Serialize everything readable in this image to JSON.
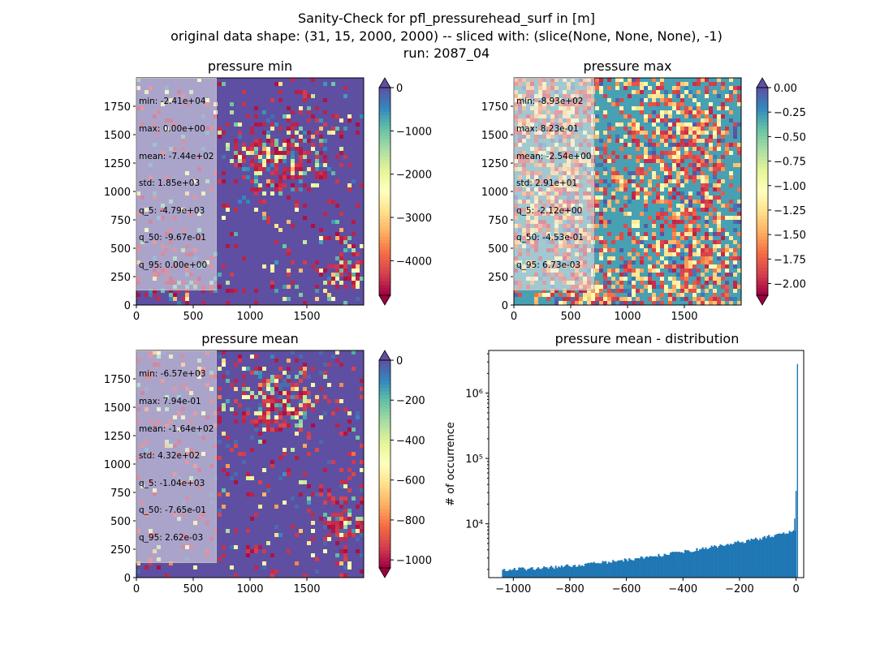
{
  "figure": {
    "title_lines": [
      "Sanity-Check for pfl_pressurehead_surf in [m]",
      "original data shape: (31, 15, 2000, 2000) -- sliced with: (slice(None, None, None), -1)",
      "run: 2087_04"
    ]
  },
  "colors": {
    "spectral": [
      "#9e0142",
      "#d53e4f",
      "#f46d43",
      "#fdae61",
      "#fee08b",
      "#ffffbf",
      "#e6f598",
      "#abdda4",
      "#66c2a5",
      "#3288bd",
      "#5e4fa2"
    ],
    "hist_bar": "#1f77b4"
  },
  "chart_data": [
    {
      "type": "heatmap",
      "title": "pressure min",
      "x_ticks": [
        0,
        500,
        1000,
        1500
      ],
      "y_ticks": [
        0,
        250,
        500,
        750,
        1000,
        1250,
        1500,
        1750
      ],
      "xlim": [
        0,
        2000
      ],
      "ylim": [
        0,
        2000
      ],
      "colormap": "Spectral",
      "dominant_value": 0,
      "color_range": [
        -4800,
        0
      ],
      "colorbar_ticks": [
        "0",
        "−1000",
        "−2000",
        "−3000",
        "−4000"
      ],
      "colorbar_tick_values": [
        0,
        -1000,
        -2000,
        -3000,
        -4000
      ],
      "colorbar_extend": "both",
      "stats": [
        "min: -2.41e+04",
        "max: 0.00e+00",
        "mean: -7.44e+02",
        "std: 1.85e+03",
        "q_5: -4.79e+03",
        "q_50: -9.67e-01",
        "q_95: 0.00e+00"
      ]
    },
    {
      "type": "heatmap",
      "title": "pressure max",
      "x_ticks": [
        0,
        500,
        1000,
        1500
      ],
      "y_ticks": [
        0,
        250,
        500,
        750,
        1000,
        1250,
        1500,
        1750
      ],
      "xlim": [
        0,
        2000
      ],
      "ylim": [
        0,
        2000
      ],
      "colormap": "Spectral",
      "dominant_value": -0.3,
      "color_range": [
        -2.12,
        0
      ],
      "colorbar_ticks": [
        "0.00",
        "−0.25",
        "−0.50",
        "−0.75",
        "−1.00",
        "−1.25",
        "−1.50",
        "−1.75",
        "−2.00"
      ],
      "colorbar_tick_values": [
        0,
        -0.25,
        -0.5,
        -0.75,
        -1.0,
        -1.25,
        -1.5,
        -1.75,
        -2.0
      ],
      "colorbar_extend": "both",
      "stats": [
        "min: -8.93e+02",
        "max: 8.23e-01",
        "mean: -2.54e+00",
        "std: 2.91e+01",
        "q_5: -2.12e+00",
        "q_50: -4.53e-01",
        "q_95: 6.73e-03"
      ]
    },
    {
      "type": "heatmap",
      "title": "pressure mean",
      "x_ticks": [
        0,
        500,
        1000,
        1500
      ],
      "y_ticks": [
        0,
        250,
        500,
        750,
        1000,
        1250,
        1500,
        1750
      ],
      "xlim": [
        0,
        2000
      ],
      "ylim": [
        0,
        2000
      ],
      "colormap": "Spectral",
      "dominant_value": 0,
      "color_range": [
        -1040,
        0
      ],
      "colorbar_ticks": [
        "0",
        "−200",
        "−400",
        "−600",
        "−800",
        "−1000"
      ],
      "colorbar_tick_values": [
        0,
        -200,
        -400,
        -600,
        -800,
        -1000
      ],
      "colorbar_extend": "both",
      "stats": [
        "min: -6.57e+03",
        "max: 7.94e-01",
        "mean: -1.64e+02",
        "std: 4.32e+02",
        "q_5: -1.04e+03",
        "q_50: -7.65e-01",
        "q_95: 2.62e-03"
      ]
    },
    {
      "type": "bar",
      "title": "pressure mean - distribution",
      "ylabel": "# of occurrence",
      "yscale": "log",
      "xlim": [
        -1087,
        27
      ],
      "ylim": [
        1500,
        4500000
      ],
      "x_ticks": [
        -1000,
        -800,
        -600,
        -400,
        -200,
        0
      ],
      "x_tick_labels": [
        "−1000",
        "−800",
        "−600",
        "−400",
        "−200",
        "0"
      ],
      "y_ticks": [
        10000,
        100000,
        1000000
      ],
      "y_tick_labels": [
        "10⁴",
        "10⁵",
        "10⁶"
      ],
      "bin_edges": [
        -1040,
        0
      ],
      "bins": 200,
      "count_at_left": 2000,
      "count_before_zero": 7700,
      "last_bins": [
        {
          "x": -5,
          "count": 12000
        },
        {
          "x": 0,
          "count": 32000
        },
        {
          "x": 5,
          "count": 2800000
        }
      ]
    }
  ]
}
